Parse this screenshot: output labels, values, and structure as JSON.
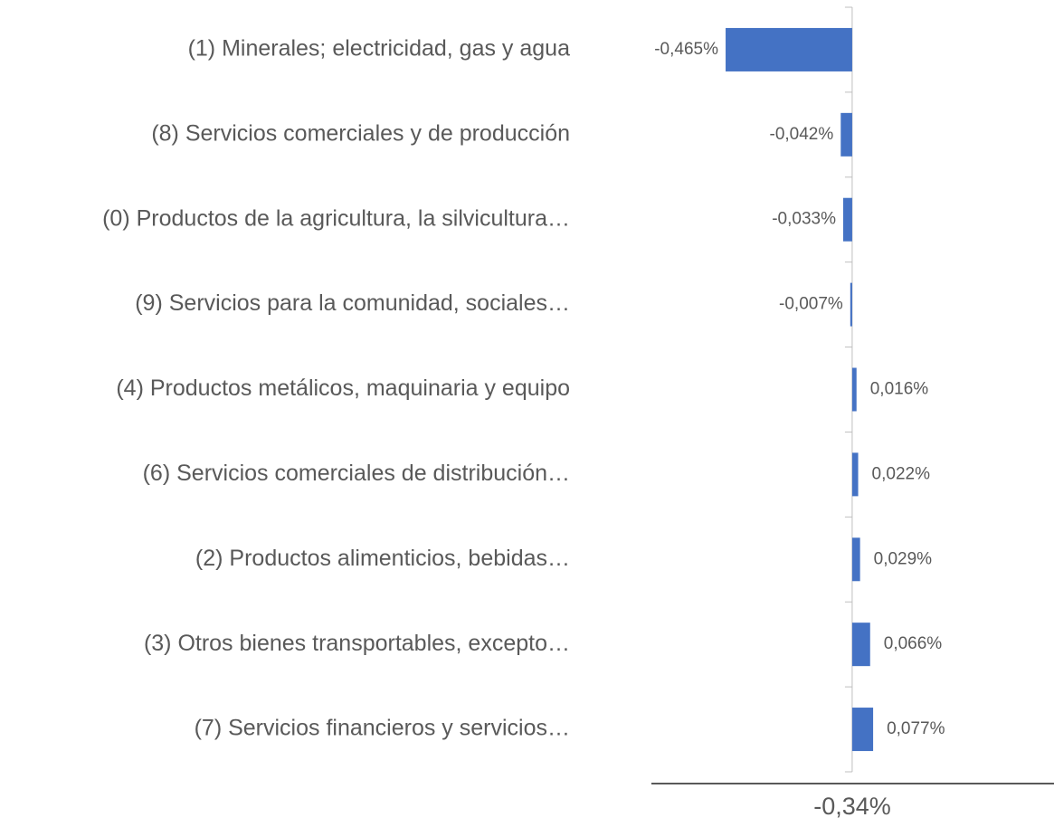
{
  "chart_data": {
    "type": "bar",
    "orientation": "horizontal",
    "categories": [
      "(1) Minerales; electricidad, gas y agua",
      "(8) Servicios comerciales y de producción",
      "(0) Productos de la agricultura, la silvicultura…",
      "(9) Servicios para la comunidad, sociales…",
      "(4) Productos metálicos, maquinaria y equipo",
      "(6) Servicios comerciales de distribución…",
      "(2) Productos alimenticios, bebidas…",
      "(3) Otros bienes transportables, excepto…",
      "(7) Servicios financieros y servicios…"
    ],
    "values": [
      -0.465,
      -0.042,
      -0.033,
      -0.007,
      0.016,
      0.022,
      0.029,
      0.066,
      0.077
    ],
    "value_labels": [
      "-0,465%",
      "-0,042%",
      "-0,033%",
      "-0,007%",
      "0,016%",
      "0,022%",
      "0,029%",
      "0,066%",
      "0,077%"
    ],
    "color": "#4472c4",
    "xlim": [
      -0.5,
      0.1
    ],
    "annotation": "-0,34%"
  }
}
